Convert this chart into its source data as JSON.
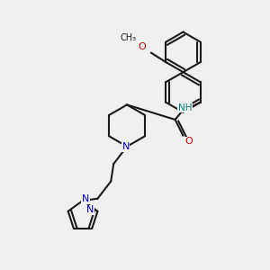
{
  "bg_color": "#f0f0f0",
  "line_color": "#1a1a1a",
  "bond_width": 1.5,
  "atom_colors": {
    "N": "#0000cc",
    "O": "#cc0000",
    "H": "#008080",
    "C": "#1a1a1a"
  },
  "font_size": 7.5
}
